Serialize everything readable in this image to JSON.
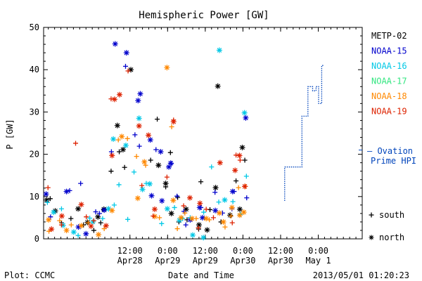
{
  "chart_data": {
    "type": "scatter",
    "title": "Hemispheric Power [GW]",
    "ylabel": "P [GW]",
    "xlabel": "Date and Time",
    "ylim": [
      0,
      50
    ],
    "x_range_hours": [
      -15.5,
      86
    ],
    "yticks": [
      0,
      10,
      20,
      30,
      40,
      50
    ],
    "xticks": [
      {
        "h": 12,
        "t1": "12:00",
        "t2": "Apr28"
      },
      {
        "h": 24,
        "t1": "0:00",
        "t2": "Apr29"
      },
      {
        "h": 36,
        "t1": "12:00",
        "t2": "Apr29"
      },
      {
        "h": 48,
        "t1": "0:00",
        "t2": "Apr30"
      },
      {
        "h": 60,
        "t1": "12:00",
        "t2": "Apr30"
      },
      {
        "h": 72,
        "t1": "0:00",
        "t2": "May 1"
      }
    ],
    "x_unit_note": "hours relative to 2013/04/28 00:00 UT",
    "legend_placement": "right",
    "marker_legend": [
      {
        "symbol": "+",
        "label": "south"
      },
      {
        "symbol": "*",
        "label": "north"
      }
    ],
    "series": [
      {
        "name": "METP-02",
        "color": "#000000",
        "south": [
          [
            -13.4,
            9.5
          ],
          [
            -9.8,
            3.8
          ],
          [
            -6.8,
            4.8
          ],
          [
            -2.8,
            3.3
          ],
          [
            0.5,
            2
          ],
          [
            2.7,
            3.8
          ],
          [
            6,
            16
          ],
          [
            8.6,
            20.6
          ],
          [
            10.3,
            16.9
          ],
          [
            18.6,
            18.6
          ],
          [
            20.7,
            28.3
          ],
          [
            23.4,
            12.3
          ],
          [
            24.9,
            20.4
          ],
          [
            27.2,
            9.8
          ],
          [
            30.2,
            4.5
          ],
          [
            34.6,
            13.5
          ],
          [
            37.5,
            6.9
          ],
          [
            41,
            4
          ],
          [
            45.8,
            13.7
          ],
          [
            48.6,
            18.6
          ],
          [
            33.9,
            2.3
          ],
          [
            27.6,
            4
          ]
        ],
        "north": [
          [
            -14.5,
            9.2
          ],
          [
            -11.8,
            6.6
          ],
          [
            -4.5,
            7.1
          ],
          [
            -1.5,
            3.9
          ],
          [
            1.8,
            5.2
          ],
          [
            3.7,
            7
          ],
          [
            8,
            26.8
          ],
          [
            9.8,
            21.1
          ],
          [
            12.3,
            40
          ],
          [
            21.1,
            17.4
          ],
          [
            23.4,
            13.1
          ],
          [
            29.9,
            7
          ],
          [
            34,
            3.3
          ],
          [
            40,
            36.1
          ],
          [
            43.9,
            5.6
          ],
          [
            47,
            7
          ],
          [
            47.8,
            21.6
          ],
          [
            39.3,
            12.1
          ],
          [
            36.6,
            2.1
          ],
          [
            25.2,
            6
          ]
        ]
      },
      {
        "name": "NOAA-15",
        "color": "#0000cc",
        "south": [
          [
            -13.3,
            5.2
          ],
          [
            -7.2,
            11.4
          ],
          [
            -3.7,
            13.1
          ],
          [
            1.1,
            6.4
          ],
          [
            2.3,
            6
          ],
          [
            6.1,
            20.6
          ],
          [
            10.6,
            40.8
          ],
          [
            13.6,
            24.6
          ],
          [
            15,
            21.9
          ],
          [
            20.3,
            21.1
          ],
          [
            25.2,
            17.8
          ],
          [
            27,
            10.1
          ],
          [
            29.8,
            3.3
          ],
          [
            34.6,
            7.4
          ],
          [
            39.1,
            11
          ],
          [
            41.5,
            6.1
          ],
          [
            44.5,
            7.1
          ],
          [
            45.2,
            11.2
          ],
          [
            49.2,
            9.7
          ],
          [
            29.2,
            6.5
          ]
        ],
        "north": [
          [
            -14.7,
            10.6
          ],
          [
            -8.2,
            11.2
          ],
          [
            -4.4,
            2.8
          ],
          [
            -2,
            1.2
          ],
          [
            3.8,
            6.8
          ],
          [
            7.3,
            46.1
          ],
          [
            10.9,
            44
          ],
          [
            14.6,
            32.7
          ],
          [
            15.3,
            34.3
          ],
          [
            18.5,
            23.4
          ],
          [
            21.8,
            20.6
          ],
          [
            22.2,
            9
          ],
          [
            24.4,
            17
          ],
          [
            25,
            17.9
          ],
          [
            31.2,
            4.5
          ],
          [
            34.2,
            7.4
          ],
          [
            39.2,
            6.7
          ],
          [
            44.7,
            11.2
          ],
          [
            48.9,
            28.6
          ],
          [
            18.9,
            10.2
          ],
          [
            35.1,
            5
          ]
        ]
      },
      {
        "name": "NOAA-16",
        "color": "#00c8e6",
        "south": [
          [
            -14.3,
            8.6
          ],
          [
            -9.8,
            7.1
          ],
          [
            -4.5,
            0.8
          ],
          [
            -0.8,
            4.9
          ],
          [
            3.3,
            4.8
          ],
          [
            7,
            8
          ],
          [
            8.5,
            12.8
          ],
          [
            11.3,
            4.6
          ],
          [
            13.3,
            15.8
          ],
          [
            17.2,
            13.1
          ],
          [
            22.1,
            3.6
          ],
          [
            28.8,
            4.8
          ],
          [
            31.2,
            5
          ],
          [
            35.5,
            6.3
          ],
          [
            38,
            17
          ],
          [
            40.3,
            8.7
          ],
          [
            44.8,
            8.8
          ],
          [
            49.1,
            14.8
          ],
          [
            47.2,
            5.8
          ],
          [
            26.2,
            7.4
          ]
        ],
        "north": [
          [
            -12.3,
            6.3
          ],
          [
            -9.3,
            3.2
          ],
          [
            -5.9,
            1.6
          ],
          [
            0.2,
            4
          ],
          [
            5.2,
            7.1
          ],
          [
            6.7,
            23.6
          ],
          [
            10.7,
            22.1
          ],
          [
            14.9,
            28.5
          ],
          [
            18.3,
            13
          ],
          [
            23.9,
            7.1
          ],
          [
            27.8,
            4.4
          ],
          [
            32,
            0.9
          ],
          [
            35.4,
            0.3
          ],
          [
            40.5,
            44.6
          ],
          [
            48.5,
            29.8
          ],
          [
            16,
            11.7
          ],
          [
            42.2,
            9.2
          ]
        ]
      },
      {
        "name": "NOAA-17",
        "color": "#33e680",
        "south": [],
        "north": []
      },
      {
        "name": "NOAA-18",
        "color": "#ff8800",
        "south": [
          [
            -13.8,
            1.8
          ],
          [
            -10.4,
            4.3
          ],
          [
            -6.7,
            3.3
          ],
          [
            -1.3,
            3.8
          ],
          [
            3.8,
            2.4
          ],
          [
            8.3,
            23.4
          ],
          [
            11.2,
            23.7
          ],
          [
            14.1,
            19.5
          ],
          [
            17,
            17.4
          ],
          [
            21.4,
            5
          ],
          [
            25.3,
            26.5
          ],
          [
            29.5,
            6.1
          ],
          [
            33.1,
            4.8
          ],
          [
            37.3,
            4.5
          ],
          [
            42.3,
            2.8
          ],
          [
            44.2,
            5.4
          ],
          [
            46.6,
            12.1
          ],
          [
            48.8,
            12.4
          ],
          [
            27.1,
            2.4
          ]
        ],
        "north": [
          [
            -13.9,
            4.5
          ],
          [
            -8.2,
            2
          ],
          [
            -3.5,
            3.1
          ],
          [
            2,
            1
          ],
          [
            6.3,
            6.7
          ],
          [
            9.4,
            24.2
          ],
          [
            14.5,
            9.6
          ],
          [
            16.6,
            18.2
          ],
          [
            19.9,
            5.3
          ],
          [
            23.8,
            40.5
          ],
          [
            25.8,
            9.1
          ],
          [
            28.3,
            5
          ],
          [
            31.8,
            4.8
          ],
          [
            36.3,
            4.8
          ],
          [
            40.5,
            6.1
          ],
          [
            44.5,
            7.4
          ],
          [
            47,
            5.6
          ],
          [
            48.3,
            6.3
          ],
          [
            41.8,
            4
          ]
        ]
      },
      {
        "name": "NOAA-19",
        "color": "#dd2200",
        "south": [
          [
            -14.1,
            12.1
          ],
          [
            -9.8,
            3.3
          ],
          [
            -5.3,
            22.6
          ],
          [
            -1.9,
            5.2
          ],
          [
            0.5,
            4.3
          ],
          [
            6,
            33.1
          ],
          [
            11.4,
            39.7
          ],
          [
            15.8,
            12.6
          ],
          [
            19.4,
            5.4
          ],
          [
            23.8,
            14.6
          ],
          [
            25.9,
            28.1
          ],
          [
            29.1,
            7.8
          ],
          [
            33.8,
            2.6
          ],
          [
            38.6,
            5
          ],
          [
            44.6,
            3.8
          ],
          [
            47.1,
            18.6
          ],
          [
            45.8,
            19.8
          ],
          [
            36.3,
            7
          ]
        ],
        "north": [
          [
            -13,
            2.3
          ],
          [
            -9.7,
            5.4
          ],
          [
            -3.5,
            8.1
          ],
          [
            -0.4,
            3
          ],
          [
            4.4,
            3.1
          ],
          [
            6.3,
            19.7
          ],
          [
            7.1,
            33
          ],
          [
            8.7,
            34.1
          ],
          [
            14.9,
            26.7
          ],
          [
            19.9,
            7
          ],
          [
            25.9,
            27.7
          ],
          [
            31.1,
            9.7
          ],
          [
            34.3,
            8.4
          ],
          [
            40.7,
            18
          ],
          [
            45.5,
            16.2
          ],
          [
            46.9,
            19.7
          ],
          [
            48.6,
            12.4
          ],
          [
            17.9,
            24.5
          ]
        ]
      }
    ],
    "ovation": {
      "label1": "— Ovation",
      "label2": "Prime HPI",
      "color": "#0044bb",
      "steps": [
        [
          61.3,
          17
        ],
        [
          66.8,
          17
        ],
        [
          66.8,
          29
        ],
        [
          68.7,
          29
        ],
        [
          68.7,
          36
        ],
        [
          70.2,
          36
        ],
        [
          70.2,
          35
        ],
        [
          71.3,
          35
        ],
        [
          71.3,
          36
        ],
        [
          72.1,
          36
        ],
        [
          72.1,
          32
        ],
        [
          73.1,
          32
        ],
        [
          73.1,
          41
        ],
        [
          73.8,
          41
        ]
      ],
      "lead_in": [
        [
          61.3,
          9
        ],
        [
          61.3,
          17
        ]
      ],
      "axis_value": 21
    }
  },
  "footer": {
    "left": "Plot: CCMC",
    "center": "Date and Time",
    "right": "2013/05/01 01:20:23"
  }
}
